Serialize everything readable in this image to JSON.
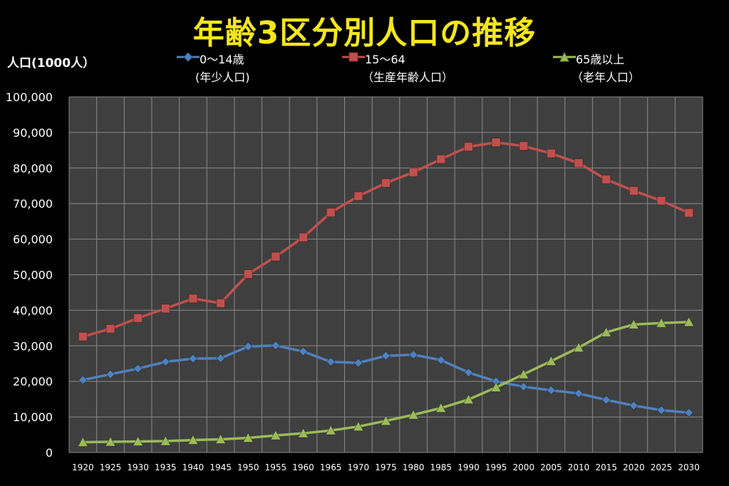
{
  "chart_data": {
    "type": "line",
    "title": "年齢3区分別人口の推移",
    "ylabel": "人口(1000人）",
    "xlabel": "",
    "ylim": [
      0,
      100000
    ],
    "yticks": [
      0,
      10000,
      20000,
      30000,
      40000,
      50000,
      60000,
      70000,
      80000,
      90000,
      100000
    ],
    "ytick_labels": [
      "0",
      "10,000",
      "20,000",
      "30,000",
      "40,000",
      "50,000",
      "60,000",
      "70,000",
      "80,000",
      "90,000",
      "100,000"
    ],
    "grid": true,
    "legend_position": "top",
    "categories": [
      "1920",
      "1925",
      "1930",
      "1935",
      "1940",
      "1945",
      "1950",
      "1955",
      "1960",
      "1965",
      "1970",
      "1975",
      "1980",
      "1985",
      "1990",
      "1995",
      "2000",
      "2005",
      "2010",
      "2015",
      "2020",
      "2025",
      "2030"
    ],
    "series": [
      {
        "name": "0～14歳",
        "name_line2": "(年少人口)",
        "color": "#4f81bd",
        "marker": "diamond",
        "values": [
          20400,
          22000,
          23600,
          25500,
          26400,
          26500,
          29800,
          30100,
          28400,
          25500,
          25200,
          27200,
          27500,
          26000,
          22500,
          20000,
          18500,
          17500,
          16600,
          14800,
          13200,
          11900,
          11200
        ]
      },
      {
        "name": "15～64",
        "name_line2": "（生産年齢人口）",
        "color": "#c0504d",
        "marker": "square",
        "values": [
          32600,
          34800,
          37800,
          40500,
          43300,
          42000,
          50200,
          55100,
          60500,
          67500,
          72100,
          75800,
          78800,
          82500,
          86000,
          87200,
          86200,
          84100,
          81400,
          76800,
          73600,
          70800,
          67400
        ]
      },
      {
        "name": "65歳以上",
        "name_line2": "（老年人口）",
        "color": "#9bbb59",
        "marker": "triangle",
        "values": [
          2900,
          3000,
          3100,
          3200,
          3500,
          3700,
          4100,
          4800,
          5400,
          6200,
          7300,
          8900,
          10600,
          12500,
          14900,
          18300,
          22000,
          25700,
          29500,
          33800,
          36000,
          36400,
          36700
        ]
      }
    ]
  },
  "colors": {
    "background": "#000000",
    "plot_background": "#3f3f3f",
    "grid": "#8a8a8a",
    "title": "#f5e61c"
  }
}
